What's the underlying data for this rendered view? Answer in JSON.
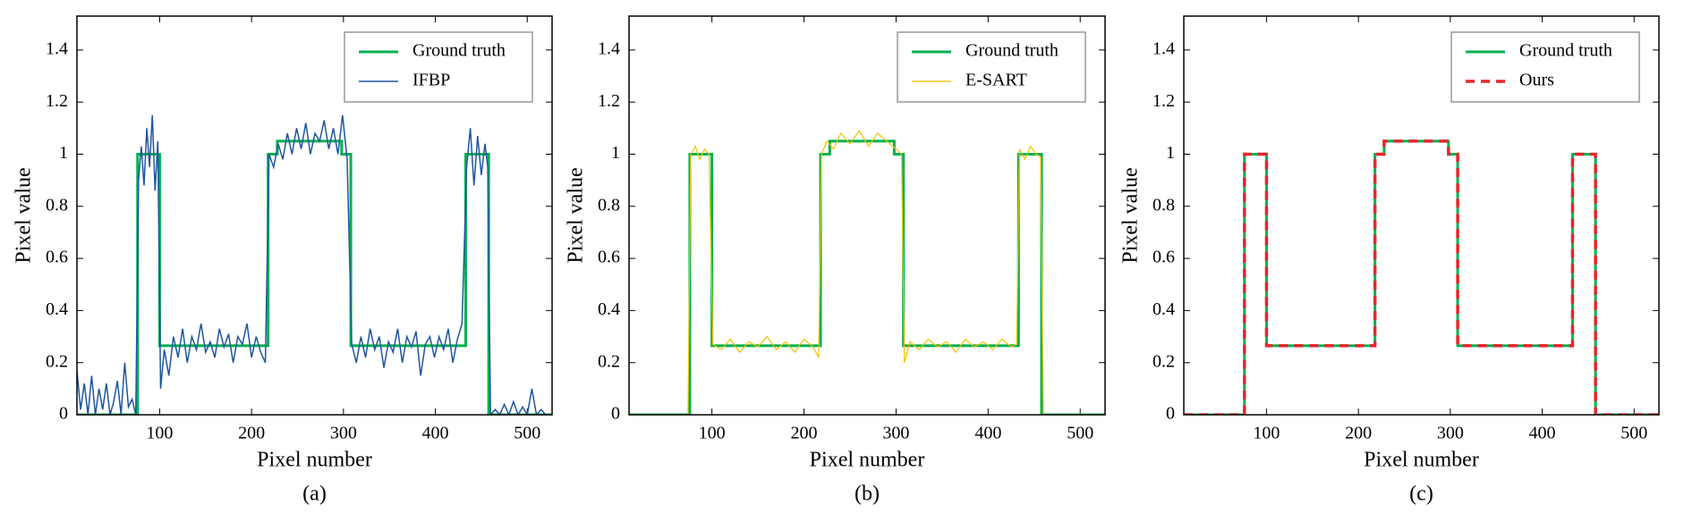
{
  "chart_data": [
    {
      "type": "line",
      "caption": "(a)",
      "xlabel": "Pixel number",
      "ylabel": "Pixel value",
      "xlim": [
        10,
        527
      ],
      "ylim": [
        0,
        1.53
      ],
      "xticks": [
        100,
        200,
        300,
        400,
        500
      ],
      "yticks": [
        0,
        0.2,
        0.4,
        0.6,
        0.8,
        1,
        1.2,
        1.4
      ],
      "legend": "upper right",
      "series": [
        {
          "name": "Ground truth",
          "color": "#00b050",
          "width": 3,
          "style": "solid",
          "x": [
            10,
            76,
            76,
            100,
            100,
            218,
            218,
            228,
            228,
            298,
            298,
            308,
            308,
            433,
            433,
            458,
            458,
            527
          ],
          "values": [
            0,
            0,
            1,
            1,
            0.265,
            0.265,
            1,
            1,
            1.05,
            1.05,
            1,
            1,
            0.265,
            0.265,
            1,
            1,
            0,
            0
          ]
        },
        {
          "name": "IFBP",
          "color": "#1f56a0",
          "width": 1.5,
          "style": "solid",
          "x": [
            10,
            14,
            18,
            22,
            26,
            30,
            34,
            38,
            42,
            46,
            50,
            54,
            58,
            62,
            66,
            70,
            74,
            77,
            80,
            83,
            86,
            89,
            92,
            95,
            98,
            101,
            105,
            110,
            115,
            120,
            125,
            130,
            135,
            140,
            145,
            150,
            155,
            160,
            165,
            170,
            175,
            180,
            185,
            190,
            195,
            200,
            205,
            210,
            215,
            219,
            224,
            229,
            234,
            239,
            244,
            249,
            254,
            259,
            264,
            269,
            274,
            279,
            284,
            289,
            294,
            299,
            304,
            309,
            314,
            319,
            324,
            329,
            334,
            339,
            344,
            349,
            354,
            359,
            364,
            369,
            374,
            379,
            384,
            389,
            394,
            399,
            404,
            409,
            414,
            419,
            424,
            429,
            434,
            438,
            442,
            446,
            450,
            454,
            457,
            460,
            465,
            470,
            475,
            480,
            485,
            490,
            495,
            500,
            505,
            510,
            515,
            520,
            527
          ],
          "values": [
            0.17,
            0.02,
            0.12,
            0,
            0.15,
            0,
            0.1,
            0.02,
            0.12,
            0,
            0.05,
            0.13,
            0,
            0.2,
            0.03,
            0.06,
            0,
            0.9,
            1.03,
            0.88,
            1.1,
            0.95,
            1.15,
            0.86,
            1.05,
            0.1,
            0.25,
            0.15,
            0.3,
            0.22,
            0.33,
            0.2,
            0.3,
            0.25,
            0.35,
            0.24,
            0.28,
            0.22,
            0.33,
            0.26,
            0.31,
            0.2,
            0.3,
            0.27,
            0.35,
            0.22,
            0.3,
            0.24,
            0.2,
            1,
            0.95,
            1.04,
            0.98,
            1.08,
            1,
            1.1,
            1.02,
            1.12,
            1,
            1.08,
            1.05,
            1.13,
            1.02,
            1.1,
            1,
            1.15,
            0.98,
            0.27,
            0.2,
            0.3,
            0.22,
            0.33,
            0.25,
            0.3,
            0.18,
            0.28,
            0.24,
            0.33,
            0.2,
            0.3,
            0.26,
            0.32,
            0.15,
            0.27,
            0.3,
            0.22,
            0.3,
            0.25,
            0.33,
            0.2,
            0.29,
            0.35,
            0.95,
            1.1,
            0.88,
            1.07,
            0.92,
            1.04,
            0.95,
            0,
            0.02,
            0,
            0.04,
            0,
            0.05,
            0,
            0.03,
            0,
            0.1,
            0,
            0.02,
            0,
            0
          ]
        }
      ]
    },
    {
      "type": "line",
      "caption": "(b)",
      "xlabel": "Pixel number",
      "ylabel": "Pixel value",
      "xlim": [
        10,
        527
      ],
      "ylim": [
        0,
        1.53
      ],
      "xticks": [
        100,
        200,
        300,
        400,
        500
      ],
      "yticks": [
        0,
        0.2,
        0.4,
        0.6,
        0.8,
        1,
        1.2,
        1.4
      ],
      "legend": "upper right",
      "series": [
        {
          "name": "Ground truth",
          "color": "#00b050",
          "width": 3,
          "style": "solid",
          "x": [
            10,
            76,
            76,
            100,
            100,
            218,
            218,
            228,
            228,
            298,
            298,
            308,
            308,
            433,
            433,
            458,
            458,
            527
          ],
          "values": [
            0,
            0,
            1,
            1,
            0.265,
            0.265,
            1,
            1,
            1.05,
            1.05,
            1,
            1,
            0.265,
            0.265,
            1,
            1,
            0,
            0
          ]
        },
        {
          "name": "E-SART",
          "color": "#f2c200",
          "width": 1.2,
          "style": "solid",
          "x": [
            10,
            74,
            77,
            82,
            87,
            92,
            97,
            101,
            110,
            120,
            130,
            140,
            150,
            160,
            170,
            180,
            190,
            200,
            210,
            216,
            219,
            225,
            232,
            240,
            250,
            260,
            270,
            280,
            290,
            300,
            306,
            309,
            315,
            325,
            335,
            345,
            355,
            365,
            375,
            385,
            395,
            405,
            415,
            425,
            431,
            434,
            440,
            446,
            452,
            457,
            460,
            527
          ],
          "values": [
            0,
            0,
            1,
            1.03,
            0.98,
            1.02,
            1,
            0.27,
            0.25,
            0.29,
            0.24,
            0.28,
            0.26,
            0.3,
            0.25,
            0.28,
            0.24,
            0.29,
            0.26,
            0.22,
            1,
            1.05,
            1.02,
            1.08,
            1.04,
            1.09,
            1.03,
            1.08,
            1.05,
            1.02,
            1,
            0.2,
            0.28,
            0.25,
            0.29,
            0.26,
            0.28,
            0.24,
            0.29,
            0.26,
            0.28,
            0.25,
            0.29,
            0.26,
            0.27,
            1.02,
            0.98,
            1.03,
            1,
            0.99,
            0,
            0
          ]
        }
      ]
    },
    {
      "type": "line",
      "caption": "(c)",
      "xlabel": "Pixel number",
      "ylabel": "Pixel value",
      "xlim": [
        10,
        527
      ],
      "ylim": [
        0,
        1.53
      ],
      "xticks": [
        100,
        200,
        300,
        400,
        500
      ],
      "yticks": [
        0,
        0.2,
        0.4,
        0.6,
        0.8,
        1,
        1.2,
        1.4
      ],
      "legend": "upper right",
      "series": [
        {
          "name": "Ground truth",
          "color": "#00b050",
          "width": 3,
          "style": "solid",
          "x": [
            10,
            76,
            76,
            100,
            100,
            218,
            218,
            228,
            228,
            298,
            298,
            308,
            308,
            433,
            433,
            458,
            458,
            527
          ],
          "values": [
            0,
            0,
            1,
            1,
            0.265,
            0.265,
            1,
            1,
            1.05,
            1.05,
            1,
            1,
            0.265,
            0.265,
            1,
            1,
            0,
            0
          ]
        },
        {
          "name": "Ours",
          "color": "#e8262b",
          "width": 3.5,
          "style": "dashed",
          "x": [
            10,
            76,
            76,
            100,
            100,
            218,
            218,
            228,
            228,
            298,
            298,
            308,
            308,
            433,
            433,
            458,
            458,
            527
          ],
          "values": [
            0,
            0,
            1,
            1,
            0.265,
            0.265,
            1,
            1,
            1.05,
            1.05,
            1,
            1,
            0.265,
            0.265,
            1,
            1,
            0,
            0
          ]
        }
      ]
    }
  ]
}
